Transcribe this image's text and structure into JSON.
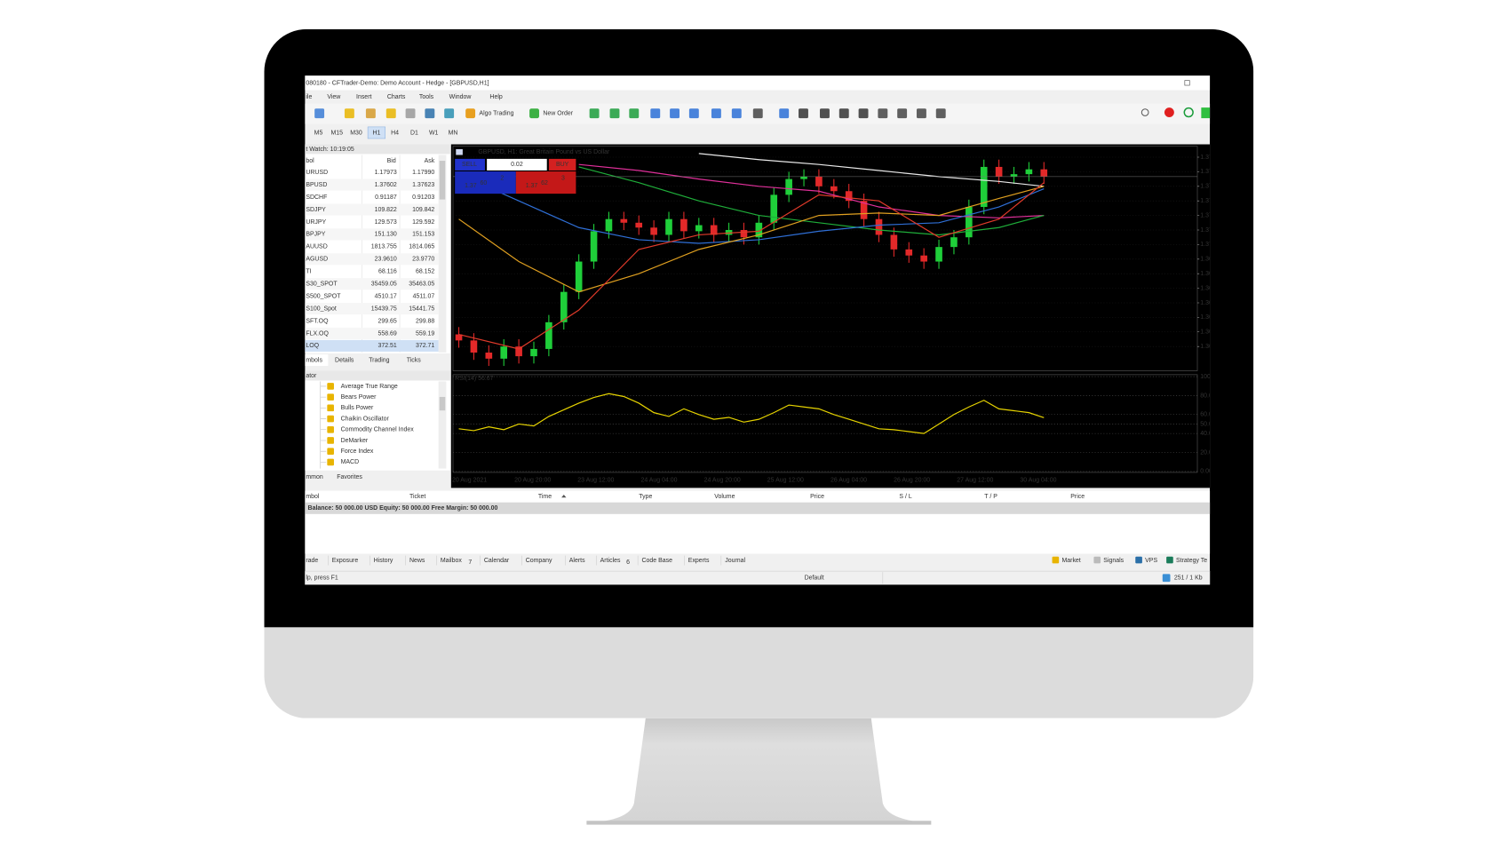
{
  "window": {
    "title": "080180 - CFTrader-Demo: Demo Account - Hedge - [GBPUSD,H1]",
    "menu": [
      "ile",
      "View",
      "Insert",
      "Charts",
      "Tools",
      "Window",
      "Help"
    ],
    "toolbar": [
      "Algo Trading",
      "New Order"
    ],
    "timeframes": [
      "M5",
      "M15",
      "M30",
      "H1",
      "H4",
      "D1",
      "W1",
      "MN"
    ]
  },
  "market_watch": {
    "title": "t Watch: 10:19:05",
    "columns": [
      "bol",
      "Bid",
      "Ask"
    ],
    "rows": [
      {
        "symbol": "URUSD",
        "bid": "1.17973",
        "ask": "1.17990",
        "color": "#e0241b"
      },
      {
        "symbol": "BPUSD",
        "bid": "1.37602",
        "ask": "1.37623",
        "color": "#e0241b"
      },
      {
        "symbol": "SDCHF",
        "bid": "0.91187",
        "ask": "0.91203",
        "color": "#2a37d6"
      },
      {
        "symbol": "SDJPY",
        "bid": "109.822",
        "ask": "109.842",
        "color": "#2a37d6"
      },
      {
        "symbol": "URJPY",
        "bid": "129.573",
        "ask": "129.592",
        "color": "#2a37d6"
      },
      {
        "symbol": "BPJPY",
        "bid": "151.130",
        "ask": "151.153",
        "color": "#2a37d6"
      },
      {
        "symbol": "AUUSD",
        "bid": "1813.755",
        "ask": "1814.065",
        "color": "#e0241b"
      },
      {
        "symbol": "AGUSD",
        "bid": "23.9610",
        "ask": "23.9770",
        "color": "#e0241b"
      },
      {
        "symbol": "TI",
        "bid": "68.116",
        "ask": "68.152",
        "color": "#e0241b"
      },
      {
        "symbol": "S30_SPOT",
        "bid": "35459.05",
        "ask": "35463.05",
        "color": "#2a37d6"
      },
      {
        "symbol": "S500_SPOT",
        "bid": "4510.17",
        "ask": "4511.07",
        "color": "#e0241b"
      },
      {
        "symbol": "S100_Spot",
        "bid": "15439.75",
        "ask": "15441.75",
        "color": "#e0241b"
      },
      {
        "symbol": "SFT.OQ",
        "bid": "299.65",
        "ask": "299.88",
        "color": "#2a37d6"
      },
      {
        "symbol": "FLX.OQ",
        "bid": "558.69",
        "ask": "559.19",
        "color": "#2a37d6"
      },
      {
        "symbol": "LOQ",
        "bid": "372.51",
        "ask": "372.71",
        "color": "#2a37d6"
      }
    ],
    "tabs": [
      "mbols",
      "Details",
      "Trading",
      "Ticks"
    ]
  },
  "navigator": {
    "title": "ator",
    "items": [
      "Average True Range",
      "Bears Power",
      "Bulls Power",
      "Chaikin Oscillator",
      "Commodity Channel Index",
      "DeMarker",
      "Force Index",
      "MACD"
    ],
    "tabs": [
      "mmon",
      "Favorites"
    ]
  },
  "trade_panel": {
    "sell": "SELL",
    "buy": "BUY",
    "lot": "0.02",
    "sell_price": [
      "1.37",
      "60",
      "2"
    ],
    "buy_price": [
      "1.37",
      "62",
      "3"
    ]
  },
  "chart_data": [
    {
      "type": "candlestick",
      "title": "GBPUSD, H1:  Great Britain Pound vs US Dollar",
      "open": [
        1.363,
        1.3625,
        1.3615,
        1.361,
        1.362,
        1.3612,
        1.3618,
        1.364,
        1.3665,
        1.369,
        1.3715,
        1.3725,
        1.3722,
        1.3718,
        1.3712,
        1.3725,
        1.3715,
        1.372,
        1.3712,
        1.3716,
        1.371,
        1.3722,
        1.3745,
        1.3758,
        1.376,
        1.3752,
        1.3748,
        1.374,
        1.3725,
        1.3712,
        1.37,
        1.3695,
        1.369,
        1.3702,
        1.371,
        1.3735,
        1.3768,
        1.376,
        1.3762,
        1.3766
      ],
      "high": [
        1.3636,
        1.3631,
        1.3621,
        1.3626,
        1.3626,
        1.3624,
        1.3646,
        1.3671,
        1.3696,
        1.3721,
        1.3731,
        1.3731,
        1.3728,
        1.3724,
        1.3731,
        1.3731,
        1.3726,
        1.3726,
        1.3722,
        1.3722,
        1.3728,
        1.3751,
        1.3764,
        1.3766,
        1.3766,
        1.3758,
        1.3754,
        1.3746,
        1.3731,
        1.3718,
        1.3706,
        1.3701,
        1.3708,
        1.3716,
        1.3741,
        1.3774,
        1.3774,
        1.3768,
        1.3772,
        1.3772
      ],
      "low": [
        1.3619,
        1.3609,
        1.3604,
        1.3604,
        1.3606,
        1.3606,
        1.3612,
        1.3634,
        1.3659,
        1.3684,
        1.3709,
        1.3716,
        1.3712,
        1.3706,
        1.3706,
        1.3709,
        1.3709,
        1.3706,
        1.3706,
        1.3704,
        1.3704,
        1.3716,
        1.3739,
        1.3752,
        1.3746,
        1.3742,
        1.3734,
        1.3719,
        1.3706,
        1.3694,
        1.3689,
        1.3684,
        1.3684,
        1.3696,
        1.3704,
        1.3729,
        1.3754,
        1.3754,
        1.3756,
        1.3754
      ],
      "close": [
        1.3625,
        1.3615,
        1.361,
        1.362,
        1.3612,
        1.3618,
        1.364,
        1.3665,
        1.369,
        1.3715,
        1.3725,
        1.3722,
        1.3718,
        1.3712,
        1.3725,
        1.3715,
        1.372,
        1.3712,
        1.3716,
        1.371,
        1.3722,
        1.3745,
        1.3758,
        1.376,
        1.3752,
        1.3748,
        1.374,
        1.3725,
        1.3712,
        1.37,
        1.3695,
        1.369,
        1.3702,
        1.371,
        1.3735,
        1.3768,
        1.376,
        1.3762,
        1.3766,
        1.376
      ],
      "up_color": "#1fcf3a",
      "down_color": "#e32929",
      "moving_averages": [
        {
          "color": "#e8e8e8",
          "x": [
            0,
            4,
            8,
            12,
            16,
            20,
            24,
            28,
            32,
            36,
            39
          ],
          "values": [
            null,
            null,
            null,
            null,
            1.3779,
            1.3774,
            1.377,
            1.3765,
            1.376,
            1.3756,
            1.3752
          ]
        },
        {
          "color": "#e0309a",
          "x": [
            0,
            4,
            8,
            12,
            16,
            20,
            24,
            28,
            32,
            36,
            39
          ],
          "values": [
            null,
            null,
            1.377,
            1.3765,
            1.3758,
            1.3752,
            1.3748,
            1.3735,
            1.3728,
            1.3726,
            1.3728
          ]
        },
        {
          "color": "#1fae3a",
          "x": [
            0,
            4,
            8,
            12,
            16,
            20,
            24,
            28,
            32,
            36,
            39
          ],
          "values": [
            null,
            null,
            1.3768,
            1.3755,
            1.374,
            1.3728,
            1.3722,
            1.3716,
            1.3712,
            1.3718,
            1.3728
          ]
        },
        {
          "color": "#2f6fd6",
          "x": [
            0,
            4,
            8,
            12,
            16,
            20,
            24,
            28,
            32,
            36,
            39
          ],
          "values": [
            1.3762,
            1.374,
            1.3718,
            1.3708,
            1.3705,
            1.3708,
            1.3715,
            1.372,
            1.3722,
            1.3735,
            1.375
          ]
        },
        {
          "color": "#e0a020",
          "x": [
            0,
            4,
            8,
            12,
            16,
            20,
            24,
            28,
            32,
            36,
            39
          ],
          "values": [
            1.3725,
            1.369,
            1.3665,
            1.368,
            1.37,
            1.3712,
            1.3728,
            1.373,
            1.3728,
            1.3742,
            1.3752
          ]
        },
        {
          "color": "#e03a2a",
          "x": [
            0,
            4,
            8,
            12,
            16,
            20,
            24,
            28,
            32,
            36,
            39
          ],
          "values": [
            1.363,
            1.3618,
            1.365,
            1.37,
            1.3712,
            1.3715,
            1.3745,
            1.374,
            1.371,
            1.3725,
            1.3755
          ]
        }
      ],
      "ylim": [
        1.36,
        1.3785
      ],
      "yticks": [
        {
          "value": 1.3776,
          "label": "1.37"
        },
        {
          "value": 1.3764,
          "label": "1.37"
        },
        {
          "value": 1.3752,
          "label": "1.37"
        },
        {
          "value": 1.374,
          "label": "1.37"
        },
        {
          "value": 1.3728,
          "label": "1.37"
        },
        {
          "value": 1.3716,
          "label": "1.37"
        },
        {
          "value": 1.3704,
          "label": "1.37"
        },
        {
          "value": 1.3692,
          "label": "1.36"
        },
        {
          "value": 1.368,
          "label": "1.36"
        },
        {
          "value": 1.3668,
          "label": "1.36"
        },
        {
          "value": 1.3656,
          "label": "1.36"
        },
        {
          "value": 1.3644,
          "label": "1.36"
        },
        {
          "value": 1.3632,
          "label": "1.36"
        },
        {
          "value": 1.362,
          "label": "1.36"
        }
      ],
      "x_tick_labels": [
        "20 Aug 2021",
        "20 Aug 20:00",
        "23 Aug 12:00",
        "24 Aug 04:00",
        "24 Aug 20:00",
        "25 Aug 12:00",
        "26 Aug 04:00",
        "26 Aug 20:00",
        "27 Aug 12:00",
        "30 Aug 04:00"
      ]
    },
    {
      "type": "line",
      "title": "RSI(14) 56.67",
      "color": "#e6d300",
      "values": [
        45,
        43,
        47,
        44,
        50,
        48,
        58,
        65,
        72,
        78,
        82,
        79,
        72,
        62,
        58,
        66,
        60,
        55,
        57,
        52,
        55,
        62,
        70,
        68,
        66,
        60,
        55,
        50,
        45,
        44,
        42,
        40,
        50,
        60,
        68,
        75,
        66,
        64,
        62,
        56.67
      ],
      "ylim": [
        0,
        100
      ],
      "yticks": [
        100,
        {
          "value": 80,
          "label": "80.0"
        },
        {
          "value": 60,
          "label": "60.0"
        },
        {
          "value": 50,
          "label": "50.0"
        },
        {
          "value": 40,
          "label": "40.0"
        },
        {
          "value": 20,
          "label": "20.0"
        },
        {
          "value": 0,
          "label": "0.00"
        }
      ]
    }
  ],
  "toolbox": {
    "columns": [
      "mbol",
      "Ticket",
      "Time",
      "Type",
      "Volume",
      "Price",
      "S / L",
      "T / P",
      "Price"
    ],
    "balance": "Balance: 50 000.00 USD  Equity: 50 000.00  Free Margin: 50 000.00",
    "tabs": [
      "rade",
      "Exposure",
      "History",
      "News",
      "Mailbox",
      "Calendar",
      "Company",
      "Alerts",
      "Articles",
      "Code Base",
      "Experts",
      "Journal"
    ],
    "badges": {
      "Mailbox": "7",
      "Articles": "6"
    },
    "right_tabs": [
      "Market",
      "Signals",
      "VPS",
      "Strategy Te"
    ]
  },
  "status": {
    "help": "lp, press F1",
    "profile": "Default",
    "traffic": "251 / 1 Kb"
  }
}
